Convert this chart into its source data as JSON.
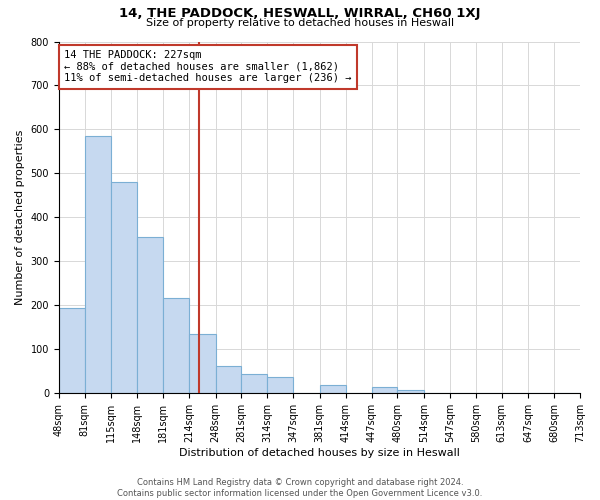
{
  "title": "14, THE PADDOCK, HESWALL, WIRRAL, CH60 1XJ",
  "subtitle": "Size of property relative to detached houses in Heswall",
  "xlabel": "Distribution of detached houses by size in Heswall",
  "ylabel": "Number of detached properties",
  "bar_color": "#c6d9f0",
  "bar_edge_color": "#7bafd4",
  "bins": [
    48,
    81,
    115,
    148,
    181,
    214,
    248,
    281,
    314,
    347,
    381,
    414,
    447,
    480,
    514,
    547,
    580,
    613,
    647,
    680,
    713
  ],
  "counts": [
    193,
    585,
    481,
    355,
    215,
    134,
    61,
    43,
    37,
    0,
    17,
    0,
    13,
    7,
    0,
    0,
    0,
    0,
    0,
    0
  ],
  "property_size": 227,
  "vline_color": "#c0392b",
  "annotation_line1": "14 THE PADDOCK: 227sqm",
  "annotation_line2": "← 88% of detached houses are smaller (1,862)",
  "annotation_line3": "11% of semi-detached houses are larger (236) →",
  "annotation_box_color": "#ffffff",
  "annotation_box_edge": "#c0392b",
  "ylim": [
    0,
    800
  ],
  "yticks": [
    0,
    100,
    200,
    300,
    400,
    500,
    600,
    700,
    800
  ],
  "footer_line1": "Contains HM Land Registry data © Crown copyright and database right 2024.",
  "footer_line2": "Contains public sector information licensed under the Open Government Licence v3.0.",
  "background_color": "#ffffff",
  "grid_color": "#d8d8d8",
  "title_fontsize": 9.5,
  "subtitle_fontsize": 8,
  "ylabel_fontsize": 8,
  "xlabel_fontsize": 8,
  "tick_fontsize": 7,
  "annotation_fontsize": 7.5,
  "footer_fontsize": 6
}
